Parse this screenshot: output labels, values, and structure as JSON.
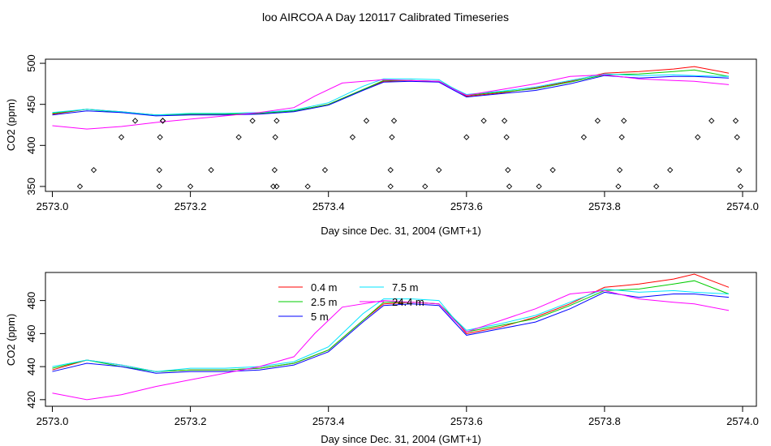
{
  "title": "loo AIRCOA A  Day 120117  Calibrated Timeseries",
  "colors": {
    "0.4 m": "#ff0000",
    "2.5 m": "#00cc00",
    "5 m": "#0000ff",
    "7.5 m": "#00e5ff",
    "24.4 m": "#ff00ff",
    "markers": "#000000"
  },
  "chart_data": [
    {
      "type": "line",
      "xlabel": "Day since Dec. 31, 2004 (GMT+1)",
      "ylabel": "CO2 (ppm)",
      "xlim": [
        2572.99,
        2574.02
      ],
      "ylim": [
        344,
        505
      ],
      "xticks": [
        2573.0,
        2573.2,
        2573.4,
        2573.6,
        2573.8,
        2574.0
      ],
      "xtick_labels": [
        "2573.0",
        "2573.2",
        "2573.4",
        "2573.6",
        "2573.8",
        "2574.0"
      ],
      "yticks": [
        350,
        400,
        450,
        500
      ],
      "ytick_labels": [
        "350",
        "400",
        "450",
        "500"
      ],
      "grid": false,
      "series": [
        {
          "name": "0.4 m",
          "x": [
            2573.0,
            2573.05,
            2573.1,
            2573.15,
            2573.2,
            2573.25,
            2573.3,
            2573.35,
            2573.4,
            2573.45,
            2573.48,
            2573.52,
            2573.56,
            2573.58,
            2573.6,
            2573.65,
            2573.7,
            2573.75,
            2573.8,
            2573.85,
            2573.9,
            2573.93,
            2573.98
          ],
          "y": [
            438,
            444,
            441,
            437,
            438,
            438,
            439,
            442,
            450,
            468,
            478,
            479,
            478,
            470,
            460,
            464,
            470,
            478,
            488,
            490,
            493,
            496,
            488
          ]
        },
        {
          "name": "2.5 m",
          "x": [
            2573.0,
            2573.05,
            2573.1,
            2573.15,
            2573.2,
            2573.25,
            2573.3,
            2573.35,
            2573.4,
            2573.45,
            2573.48,
            2573.52,
            2573.56,
            2573.58,
            2573.6,
            2573.65,
            2573.7,
            2573.75,
            2573.8,
            2573.85,
            2573.9,
            2573.93,
            2573.98
          ],
          "y": [
            439,
            444,
            440,
            437,
            438,
            438,
            439,
            442,
            450,
            468,
            479,
            479,
            478,
            470,
            461,
            465,
            469,
            477,
            486,
            487,
            490,
            492,
            484
          ]
        },
        {
          "name": "5 m",
          "x": [
            2573.0,
            2573.05,
            2573.1,
            2573.15,
            2573.2,
            2573.25,
            2573.3,
            2573.35,
            2573.4,
            2573.45,
            2573.48,
            2573.52,
            2573.56,
            2573.58,
            2573.6,
            2573.65,
            2573.7,
            2573.75,
            2573.8,
            2573.85,
            2573.9,
            2573.93,
            2573.98
          ],
          "y": [
            437,
            442,
            440,
            436,
            437,
            437,
            438,
            441,
            449,
            467,
            477,
            478,
            477,
            468,
            459,
            463,
            467,
            475,
            485,
            482,
            484,
            484,
            482
          ]
        },
        {
          "name": "7.5 m",
          "x": [
            2573.0,
            2573.05,
            2573.1,
            2573.15,
            2573.2,
            2573.25,
            2573.3,
            2573.35,
            2573.4,
            2573.45,
            2573.48,
            2573.52,
            2573.56,
            2573.58,
            2573.6,
            2573.65,
            2573.7,
            2573.75,
            2573.8,
            2573.85,
            2573.9,
            2573.93,
            2573.98
          ],
          "y": [
            440,
            444,
            441,
            437,
            439,
            439,
            440,
            443,
            452,
            472,
            481,
            481,
            480,
            470,
            462,
            466,
            471,
            479,
            487,
            485,
            486,
            485,
            484
          ]
        },
        {
          "name": "24.4 m",
          "x": [
            2573.0,
            2573.05,
            2573.1,
            2573.15,
            2573.2,
            2573.25,
            2573.3,
            2573.35,
            2573.38,
            2573.42,
            2573.48,
            2573.52,
            2573.56,
            2573.58,
            2573.6,
            2573.65,
            2573.7,
            2573.75,
            2573.8,
            2573.85,
            2573.9,
            2573.93,
            2573.98
          ],
          "y": [
            424,
            420,
            423,
            428,
            432,
            436,
            440,
            446,
            460,
            476,
            480,
            479,
            478,
            469,
            461,
            468,
            475,
            484,
            486,
            481,
            479,
            478,
            474
          ]
        }
      ],
      "markers": {
        "x": [
          2573.04,
          2573.06,
          2573.1,
          2573.12,
          2573.155,
          2573.155,
          2573.156,
          2573.16,
          2573.16,
          2573.2,
          2573.23,
          2573.27,
          2573.29,
          2573.32,
          2573.322,
          2573.323,
          2573.325,
          2573.325,
          2573.37,
          2573.395,
          2573.435,
          2573.455,
          2573.49,
          2573.49,
          2573.492,
          2573.495,
          2573.54,
          2573.56,
          2573.6,
          2573.625,
          2573.655,
          2573.658,
          2573.66,
          2573.662,
          2573.705,
          2573.725,
          2573.77,
          2573.79,
          2573.82,
          2573.822,
          2573.825,
          2573.828,
          2573.875,
          2573.895,
          2573.935,
          2573.955,
          2573.99,
          2573.992,
          2573.995,
          2573.997
        ],
        "y": [
          350,
          370,
          410,
          430,
          350,
          370,
          410,
          430,
          430,
          350,
          370,
          410,
          430,
          350,
          370,
          410,
          430,
          350,
          350,
          370,
          410,
          430,
          350,
          370,
          410,
          430,
          350,
          370,
          410,
          430,
          430,
          410,
          370,
          350,
          350,
          370,
          410,
          430,
          350,
          370,
          410,
          430,
          350,
          370,
          410,
          430,
          430,
          410,
          370,
          350
        ]
      }
    },
    {
      "type": "line",
      "xlabel": "Day since Dec. 31, 2004 (GMT+1)",
      "ylabel": "CO2 (ppm)",
      "xlim": [
        2572.99,
        2574.02
      ],
      "ylim": [
        416,
        497
      ],
      "xticks": [
        2573.0,
        2573.2,
        2573.4,
        2573.6,
        2573.8,
        2574.0
      ],
      "xtick_labels": [
        "2573.0",
        "2573.2",
        "2573.4",
        "2573.6",
        "2573.8",
        "2574.0"
      ],
      "yticks": [
        420,
        440,
        460,
        480
      ],
      "ytick_labels": [
        "420",
        "440",
        "460",
        "480"
      ],
      "grid": false,
      "legend": {
        "position": "top-center",
        "entries": [
          "0.4 m",
          "2.5 m",
          "5 m",
          "7.5 m",
          "24.4 m"
        ]
      },
      "series": [
        {
          "name": "0.4 m",
          "x": [
            2573.0,
            2573.05,
            2573.1,
            2573.15,
            2573.2,
            2573.25,
            2573.3,
            2573.35,
            2573.4,
            2573.45,
            2573.48,
            2573.52,
            2573.56,
            2573.58,
            2573.6,
            2573.65,
            2573.7,
            2573.75,
            2573.8,
            2573.85,
            2573.9,
            2573.93,
            2573.98
          ],
          "y": [
            438,
            444,
            441,
            437,
            438,
            438,
            439,
            442,
            450,
            468,
            478,
            479,
            478,
            470,
            460,
            464,
            470,
            478,
            488,
            490,
            493,
            496,
            488
          ]
        },
        {
          "name": "2.5 m",
          "x": [
            2573.0,
            2573.05,
            2573.1,
            2573.15,
            2573.2,
            2573.25,
            2573.3,
            2573.35,
            2573.4,
            2573.45,
            2573.48,
            2573.52,
            2573.56,
            2573.58,
            2573.6,
            2573.65,
            2573.7,
            2573.75,
            2573.8,
            2573.85,
            2573.9,
            2573.93,
            2573.98
          ],
          "y": [
            439,
            444,
            440,
            437,
            438,
            438,
            439,
            442,
            450,
            468,
            479,
            479,
            478,
            470,
            461,
            465,
            469,
            477,
            486,
            487,
            490,
            492,
            484
          ]
        },
        {
          "name": "5 m",
          "x": [
            2573.0,
            2573.05,
            2573.1,
            2573.15,
            2573.2,
            2573.25,
            2573.3,
            2573.35,
            2573.4,
            2573.45,
            2573.48,
            2573.52,
            2573.56,
            2573.58,
            2573.6,
            2573.65,
            2573.7,
            2573.75,
            2573.8,
            2573.85,
            2573.9,
            2573.93,
            2573.98
          ],
          "y": [
            437,
            442,
            440,
            436,
            437,
            437,
            438,
            441,
            449,
            467,
            477,
            478,
            477,
            468,
            459,
            463,
            467,
            475,
            485,
            482,
            484,
            484,
            482
          ]
        },
        {
          "name": "7.5 m",
          "x": [
            2573.0,
            2573.05,
            2573.1,
            2573.15,
            2573.2,
            2573.25,
            2573.3,
            2573.35,
            2573.4,
            2573.45,
            2573.48,
            2573.52,
            2573.56,
            2573.58,
            2573.6,
            2573.65,
            2573.7,
            2573.75,
            2573.8,
            2573.85,
            2573.9,
            2573.93,
            2573.98
          ],
          "y": [
            440,
            444,
            441,
            437,
            439,
            439,
            440,
            443,
            452,
            472,
            481,
            481,
            480,
            470,
            462,
            466,
            471,
            479,
            487,
            485,
            486,
            485,
            484
          ]
        },
        {
          "name": "24.4 m",
          "x": [
            2573.0,
            2573.05,
            2573.1,
            2573.15,
            2573.2,
            2573.25,
            2573.3,
            2573.35,
            2573.38,
            2573.42,
            2573.48,
            2573.52,
            2573.56,
            2573.58,
            2573.6,
            2573.65,
            2573.7,
            2573.75,
            2573.8,
            2573.85,
            2573.9,
            2573.93,
            2573.98
          ],
          "y": [
            424,
            420,
            423,
            428,
            432,
            436,
            440,
            446,
            460,
            476,
            480,
            479,
            478,
            469,
            461,
            468,
            475,
            484,
            486,
            481,
            479,
            478,
            474
          ]
        }
      ]
    }
  ]
}
